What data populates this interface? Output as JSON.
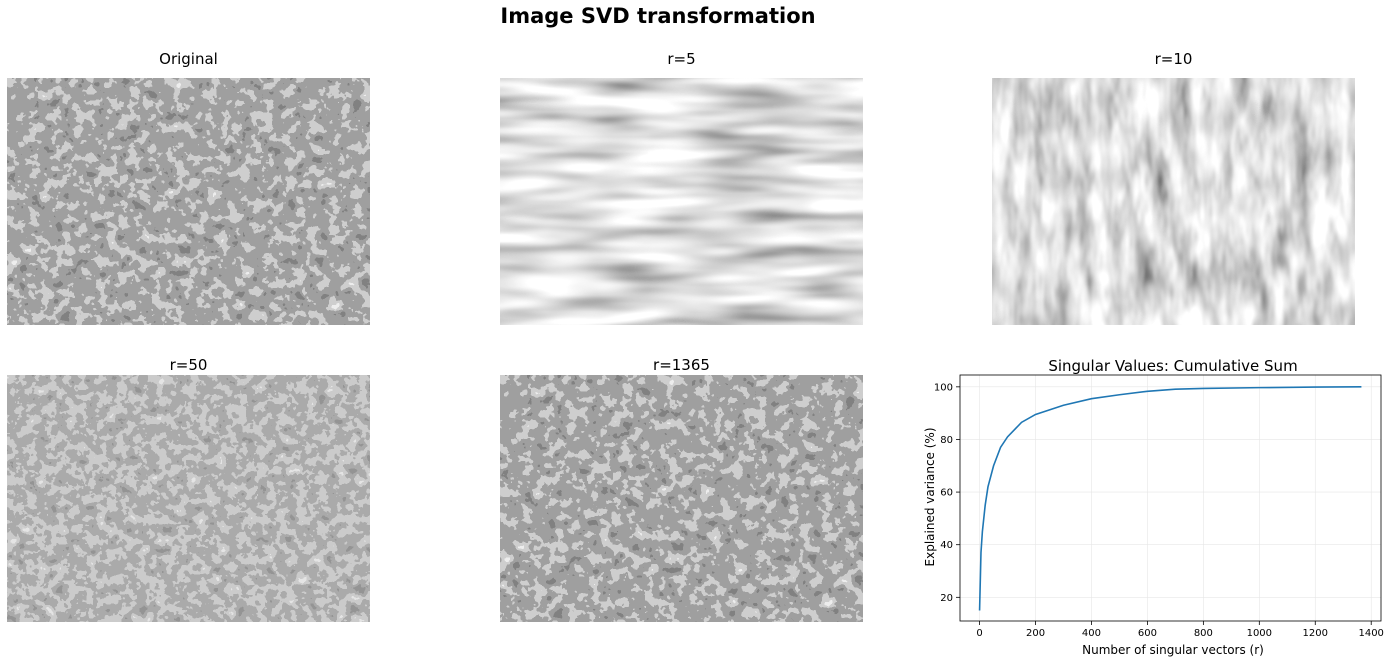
{
  "figure": {
    "suptitle": "Image SVD transformation"
  },
  "panels": [
    {
      "title": "Original",
      "rank": "full"
    },
    {
      "title": "r=5",
      "rank": 5
    },
    {
      "title": "r=10",
      "rank": 10
    },
    {
      "title": "r=50",
      "rank": 50
    },
    {
      "title": "r=1365",
      "rank": 1365
    }
  ],
  "chart_data": {
    "type": "line",
    "title": "Singular Values: Cumulative Sum",
    "xlabel": "Number of singular vectors (r)",
    "ylabel": "Explained variance (%)",
    "xlim": [
      -70,
      1435
    ],
    "ylim": [
      11,
      104.5
    ],
    "xticks": [
      0,
      200,
      400,
      600,
      800,
      1000,
      1200,
      1400
    ],
    "yticks": [
      20,
      40,
      60,
      80,
      100
    ],
    "grid": true,
    "color": "#1f77b4",
    "series": [
      {
        "x": [
          0,
          5,
          10,
          20,
          30,
          50,
          75,
          100,
          150,
          200,
          300,
          400,
          500,
          600,
          700,
          800,
          1000,
          1200,
          1365
        ],
        "values": [
          15,
          37,
          45,
          55,
          62,
          70,
          77,
          81,
          86.5,
          89.5,
          93,
          95.5,
          97,
          98.3,
          99.1,
          99.4,
          99.7,
          99.9,
          100
        ]
      }
    ]
  }
}
